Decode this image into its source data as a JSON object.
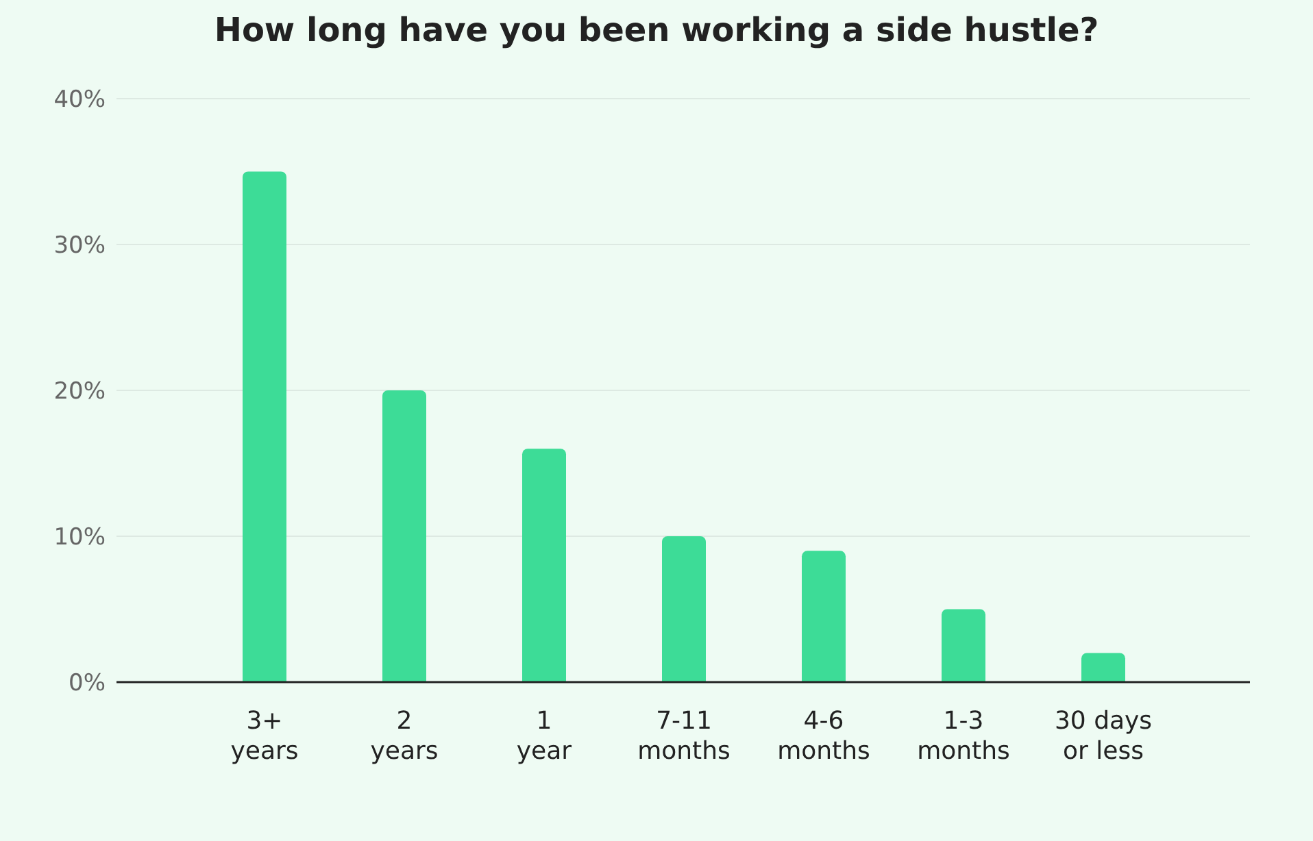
{
  "chart_data": {
    "type": "bar",
    "title": "How long have you been working a side hustle?",
    "categories": [
      "3+\nyears",
      "2\nyears",
      "1\nyear",
      "7-11\nmonths",
      "4-6\nmonths",
      "1-3\nmonths",
      "30 days\nor less"
    ],
    "values": [
      35,
      20,
      16,
      10,
      9,
      5,
      2
    ],
    "color": "#3ddc97",
    "ylim": [
      0,
      40
    ],
    "yticks": [
      {
        "value": 0,
        "label": "0%"
      },
      {
        "value": 10,
        "label": "10%"
      },
      {
        "value": 20,
        "label": "20%"
      },
      {
        "value": 30,
        "label": "30%"
      },
      {
        "value": 40,
        "label": "40%"
      }
    ],
    "grid": "y"
  }
}
